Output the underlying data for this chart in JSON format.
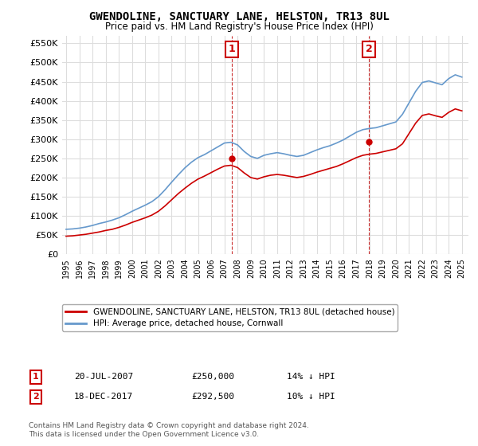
{
  "title": "GWENDOLINE, SANCTUARY LANE, HELSTON, TR13 8UL",
  "subtitle": "Price paid vs. HM Land Registry's House Price Index (HPI)",
  "ylabel_ticks": [
    0,
    50000,
    100000,
    150000,
    200000,
    250000,
    300000,
    350000,
    400000,
    450000,
    500000,
    550000
  ],
  "ylim": [
    0,
    570000
  ],
  "xlim_start": 1994.7,
  "xlim_end": 2025.5,
  "sale1_date": 2007.55,
  "sale1_price": 250000,
  "sale1_label": "1",
  "sale2_date": 2017.96,
  "sale2_price": 292500,
  "sale2_label": "2",
  "legend_house": "GWENDOLINE, SANCTUARY LANE, HELSTON, TR13 8UL (detached house)",
  "legend_hpi": "HPI: Average price, detached house, Cornwall",
  "footnote1": "Contains HM Land Registry data © Crown copyright and database right 2024.",
  "footnote2": "This data is licensed under the Open Government Licence v3.0.",
  "line_house_color": "#cc0000",
  "line_hpi_color": "#6699cc",
  "dashed_vline_color": "#cc3333",
  "marker_box_color": "#cc0000",
  "background_color": "#ffffff",
  "grid_color": "#dddddd",
  "years_hpi": [
    1995.0,
    1995.5,
    1996.0,
    1996.5,
    1997.0,
    1997.5,
    1998.0,
    1998.5,
    1999.0,
    1999.5,
    2000.0,
    2000.5,
    2001.0,
    2001.5,
    2002.0,
    2002.5,
    2003.0,
    2003.5,
    2004.0,
    2004.5,
    2005.0,
    2005.5,
    2006.0,
    2006.5,
    2007.0,
    2007.5,
    2008.0,
    2008.5,
    2009.0,
    2009.5,
    2010.0,
    2010.5,
    2011.0,
    2011.5,
    2012.0,
    2012.5,
    2013.0,
    2013.5,
    2014.0,
    2014.5,
    2015.0,
    2015.5,
    2016.0,
    2016.5,
    2017.0,
    2017.5,
    2018.0,
    2018.5,
    2019.0,
    2019.5,
    2020.0,
    2020.5,
    2021.0,
    2021.5,
    2022.0,
    2022.5,
    2023.0,
    2023.5,
    2024.0,
    2024.5,
    2025.0
  ],
  "hpi_values": [
    65000,
    66000,
    68000,
    71000,
    75000,
    80000,
    84000,
    89000,
    95000,
    103000,
    112000,
    120000,
    128000,
    137000,
    150000,
    168000,
    188000,
    207000,
    225000,
    240000,
    252000,
    260000,
    270000,
    280000,
    290000,
    292000,
    285000,
    268000,
    255000,
    250000,
    258000,
    262000,
    265000,
    262000,
    258000,
    255000,
    258000,
    265000,
    272000,
    278000,
    283000,
    290000,
    298000,
    308000,
    318000,
    325000,
    328000,
    330000,
    335000,
    340000,
    345000,
    365000,
    395000,
    425000,
    448000,
    452000,
    447000,
    442000,
    458000,
    468000,
    462000
  ],
  "house_values": [
    47000,
    48000,
    50000,
    52000,
    55000,
    58000,
    62000,
    65000,
    70000,
    76000,
    83000,
    89000,
    95000,
    102000,
    112000,
    126000,
    142000,
    158000,
    172000,
    185000,
    196000,
    204000,
    213000,
    222000,
    230000,
    232000,
    226000,
    212000,
    200000,
    196000,
    202000,
    206000,
    208000,
    206000,
    203000,
    200000,
    203000,
    208000,
    214000,
    219000,
    224000,
    229000,
    236000,
    244000,
    252000,
    258000,
    261000,
    263000,
    267000,
    271000,
    275000,
    288000,
    315000,
    342000,
    362000,
    366000,
    361000,
    357000,
    370000,
    379000,
    374000
  ]
}
